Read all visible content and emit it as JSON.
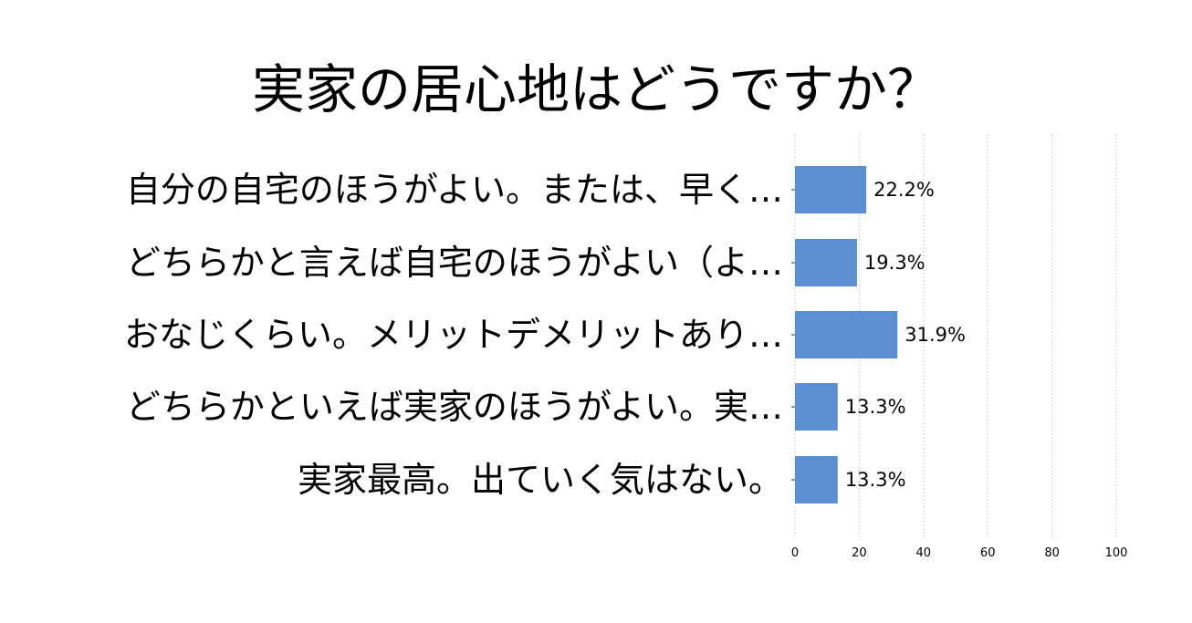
{
  "chart_data": {
    "type": "bar",
    "orientation": "horizontal",
    "title": "実家の居心地はどうですか？",
    "categories": [
      "自分の自宅のほうがよい。または、早く…",
      "どちらかと言えば自宅のほうがよい（よ…",
      "おなじくらい。メリットデメリットあり…",
      "どちらかといえば実家のほうがよい。実…",
      "実家最高。出ていく気はない。"
    ],
    "values": [
      22.2,
      19.3,
      31.9,
      13.3,
      13.3
    ],
    "value_labels": [
      "22.2%",
      "19.3%",
      "31.9%",
      "13.3%",
      "13.3%"
    ],
    "xlim": [
      0,
      100
    ],
    "xticks": [
      0,
      20,
      40,
      60,
      80,
      100
    ],
    "xlabel": "",
    "ylabel": "",
    "grid": true,
    "bar_color": "#5b8fd1",
    "grid_color": "#cccccc"
  }
}
